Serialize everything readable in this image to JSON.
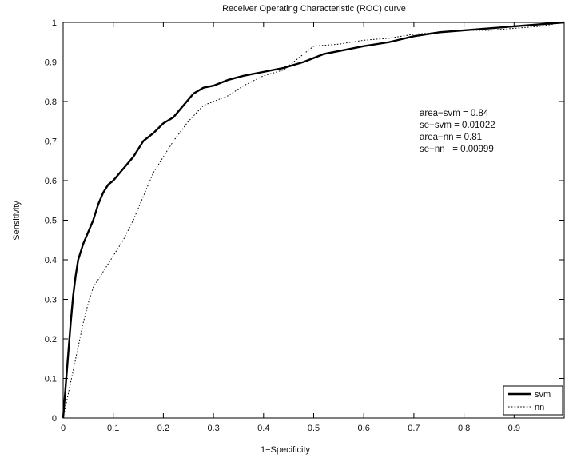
{
  "chart_data": {
    "type": "line",
    "title": "Receiver Operating Characteristic (ROC) curve",
    "xlabel": "1−Specificity",
    "ylabel": "Sensitivity",
    "xlim": [
      0,
      1
    ],
    "ylim": [
      0,
      1
    ],
    "x_ticks": [
      "0",
      "0.1",
      "0.2",
      "0.3",
      "0.4",
      "0.5",
      "0.6",
      "0.7",
      "0.8",
      "0.9"
    ],
    "x_tick_values": [
      0,
      0.1,
      0.2,
      0.3,
      0.4,
      0.5,
      0.6,
      0.7,
      0.8,
      0.9
    ],
    "y_ticks": [
      "0",
      "0.1",
      "0.2",
      "0.3",
      "0.4",
      "0.5",
      "0.6",
      "0.7",
      "0.8",
      "0.9",
      "1"
    ],
    "y_tick_values": [
      0,
      0.1,
      0.2,
      0.3,
      0.4,
      0.5,
      0.6,
      0.7,
      0.8,
      0.9,
      1
    ],
    "grid": false,
    "legend_position": "bottom-right",
    "series": [
      {
        "name": "svm",
        "style": "solid",
        "color": "#000000",
        "x": [
          0,
          0.005,
          0.01,
          0.015,
          0.02,
          0.025,
          0.03,
          0.04,
          0.05,
          0.06,
          0.07,
          0.08,
          0.09,
          0.1,
          0.12,
          0.14,
          0.16,
          0.18,
          0.2,
          0.22,
          0.24,
          0.26,
          0.28,
          0.3,
          0.33,
          0.36,
          0.4,
          0.44,
          0.48,
          0.52,
          0.56,
          0.6,
          0.65,
          0.7,
          0.75,
          0.8,
          0.85,
          0.9,
          0.95,
          1.0
        ],
        "y": [
          0,
          0.08,
          0.16,
          0.24,
          0.31,
          0.36,
          0.4,
          0.44,
          0.47,
          0.5,
          0.54,
          0.57,
          0.59,
          0.6,
          0.63,
          0.66,
          0.7,
          0.72,
          0.745,
          0.76,
          0.79,
          0.82,
          0.835,
          0.84,
          0.855,
          0.865,
          0.875,
          0.885,
          0.9,
          0.92,
          0.93,
          0.94,
          0.95,
          0.965,
          0.975,
          0.98,
          0.985,
          0.99,
          0.995,
          1.0
        ]
      },
      {
        "name": "nn",
        "style": "dotted",
        "color": "#000000",
        "x": [
          0,
          0.01,
          0.02,
          0.03,
          0.04,
          0.05,
          0.06,
          0.08,
          0.1,
          0.12,
          0.14,
          0.16,
          0.18,
          0.2,
          0.22,
          0.25,
          0.28,
          0.3,
          0.33,
          0.36,
          0.4,
          0.44,
          0.47,
          0.5,
          0.55,
          0.6,
          0.65,
          0.7,
          0.75,
          0.8,
          0.85,
          0.9,
          0.95,
          1.0
        ],
        "y": [
          0,
          0.06,
          0.12,
          0.18,
          0.24,
          0.29,
          0.33,
          0.37,
          0.41,
          0.45,
          0.5,
          0.56,
          0.62,
          0.66,
          0.7,
          0.75,
          0.79,
          0.8,
          0.815,
          0.84,
          0.865,
          0.88,
          0.91,
          0.94,
          0.945,
          0.955,
          0.96,
          0.97,
          0.975,
          0.98,
          0.98,
          0.985,
          0.99,
          1.0
        ]
      }
    ],
    "annotations": [
      "area−svm = 0.84",
      "se−svm = 0.01022",
      "area−nn = 0.81",
      "se−nn   = 0.00999"
    ]
  }
}
